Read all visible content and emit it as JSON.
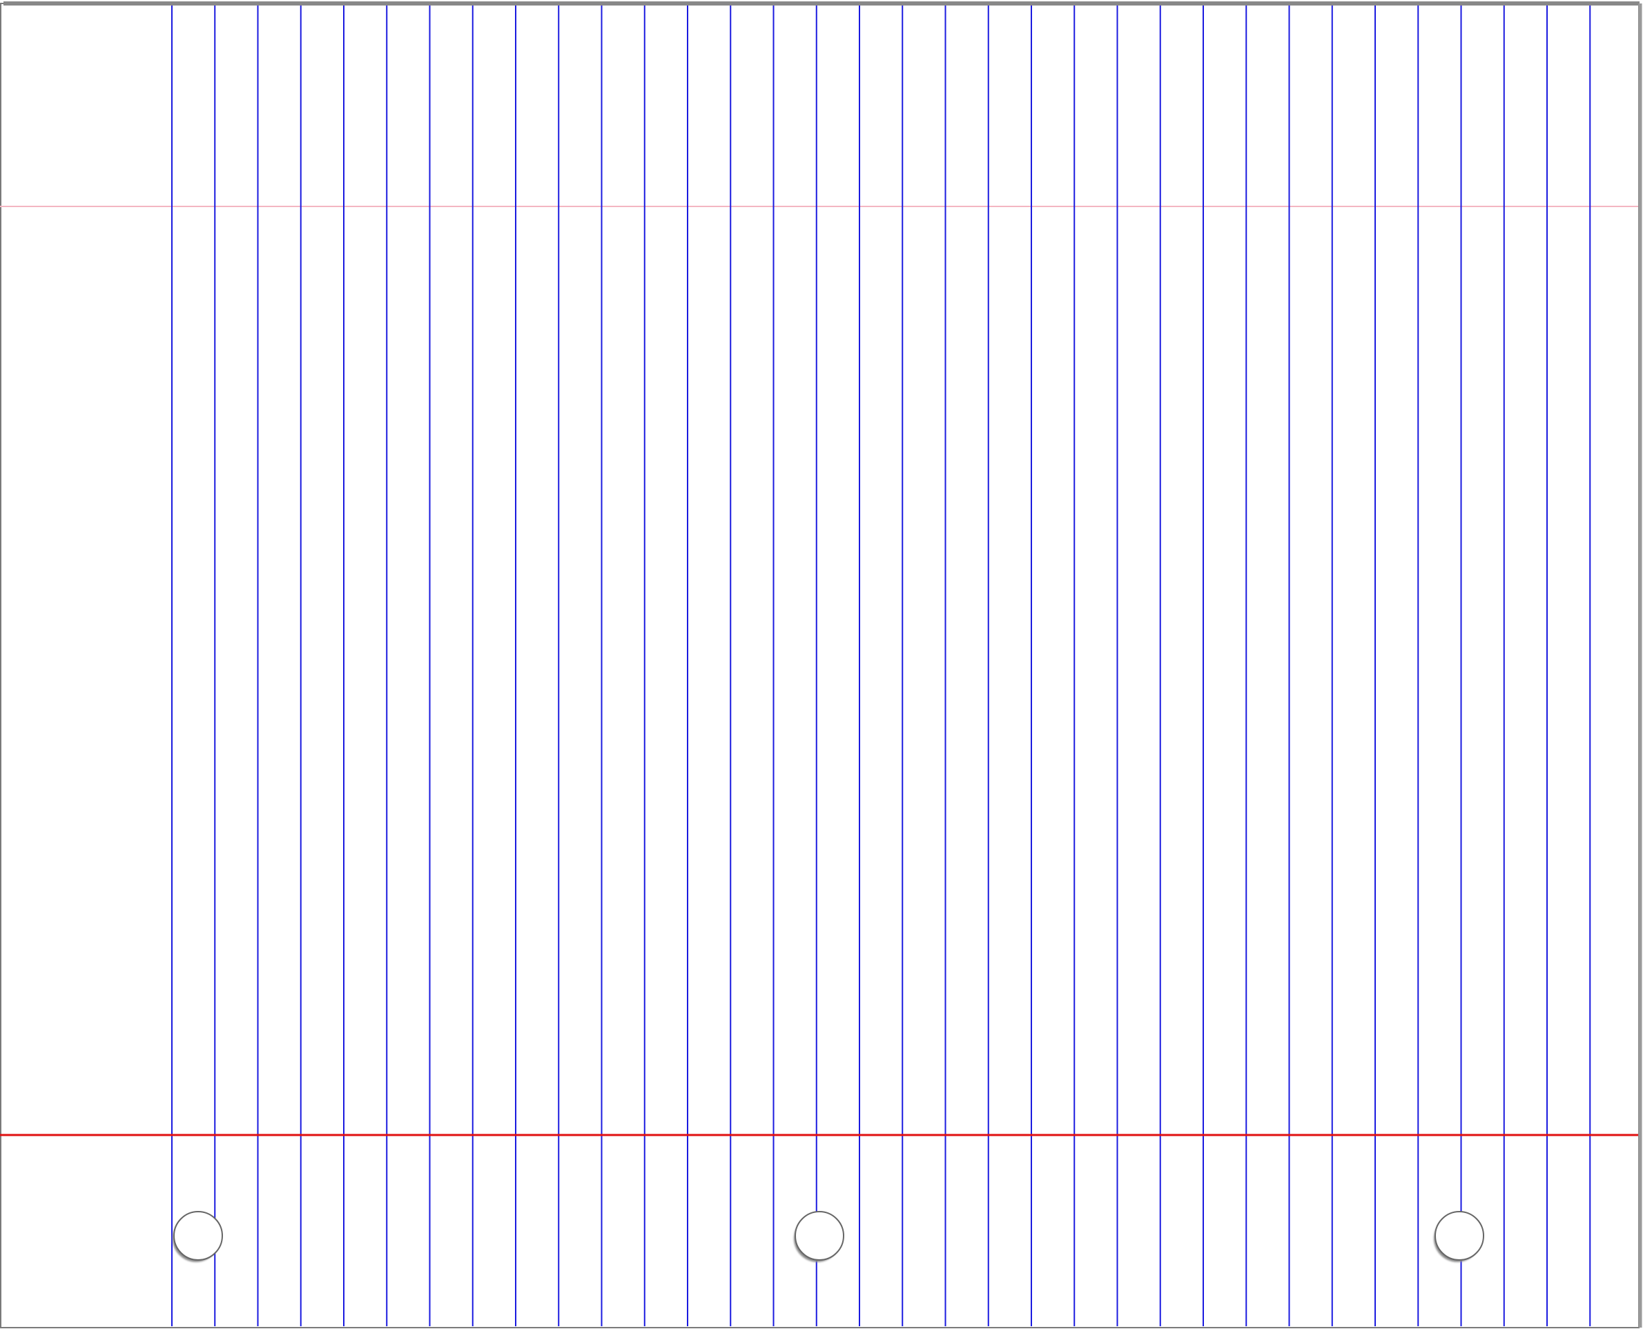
{
  "paper": {
    "style": "three-hole-punched ruled notebook sheet, rotated (rules run vertically)",
    "colors": {
      "background": "#ffffff",
      "rule_line": "#1a1adf",
      "margin_line": "#e01010",
      "header_line": "#f4b6c2",
      "border": "#7a7a7a",
      "hole_outline": "#666666",
      "hole_shadow": "#8a8a8a"
    },
    "rule_line_count": 34,
    "punch_hole_count": 3
  }
}
